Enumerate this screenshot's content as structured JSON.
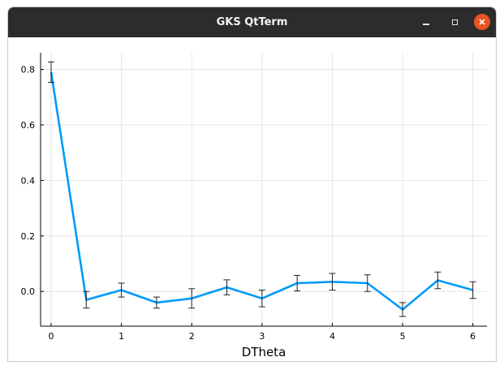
{
  "window": {
    "title": "GKS QtTerm",
    "buttons": [
      "minimize",
      "maximize",
      "close"
    ]
  },
  "chart_data": {
    "type": "line",
    "title": "",
    "xlabel": "DTheta",
    "ylabel": "",
    "xlim": [
      -0.15,
      6.2
    ],
    "ylim": [
      -0.125,
      0.86
    ],
    "xticks": [
      0,
      1,
      2,
      3,
      4,
      5,
      6
    ],
    "yticks": [
      0.0,
      0.2,
      0.4,
      0.6,
      0.8
    ],
    "ytick_labels": [
      "0.0",
      "0.2",
      "0.4",
      "0.6",
      "0.8"
    ],
    "grid": true,
    "legend": "none",
    "series": [
      {
        "color": "#009af9",
        "x": [
          0,
          0.5,
          1,
          1.5,
          2,
          2.5,
          3,
          3.5,
          4,
          4.5,
          5,
          5.5,
          6
        ],
        "y": [
          0.79,
          -0.03,
          0.005,
          -0.04,
          -0.025,
          0.015,
          -0.025,
          0.03,
          0.035,
          0.03,
          -0.065,
          0.04,
          0.005
        ],
        "yerr": [
          0.037,
          0.03,
          0.025,
          0.02,
          0.035,
          0.027,
          0.03,
          0.028,
          0.03,
          0.03,
          0.025,
          0.03,
          0.03
        ]
      }
    ]
  }
}
